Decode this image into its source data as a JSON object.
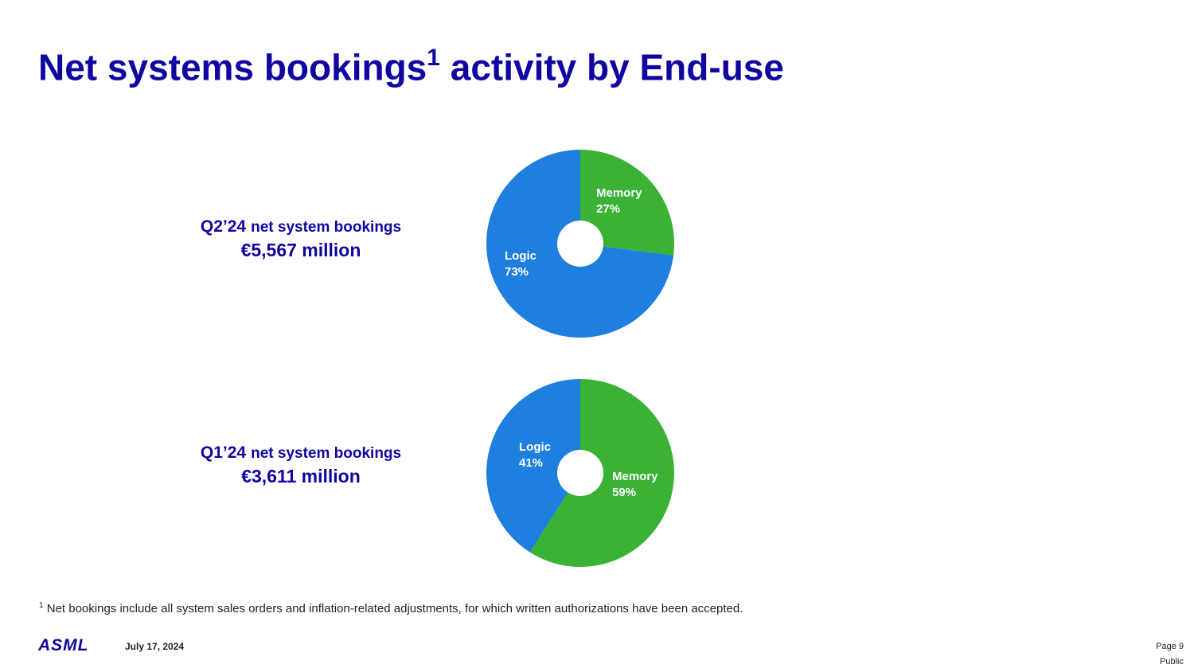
{
  "title": {
    "main": "Net systems bookings",
    "footnote_marker": "1",
    "rest": " activity by End-use"
  },
  "colors": {
    "brand": "#10069f",
    "logic": "#1e7fdf",
    "memory": "#39b235"
  },
  "chart_data": [
    {
      "type": "pie",
      "quarter": "Q2’24",
      "subtitle": "net system bookings",
      "total": "€5,567 million",
      "categories": [
        "Memory",
        "Logic"
      ],
      "values": [
        27,
        73
      ],
      "labels": [
        "27%",
        "73%"
      ],
      "colors": [
        "#39b235",
        "#1e7fdf"
      ]
    },
    {
      "type": "pie",
      "quarter": "Q1’24",
      "subtitle": "net system bookings",
      "total": "€3,611 million",
      "categories": [
        "Memory",
        "Logic"
      ],
      "values": [
        59,
        41
      ],
      "labels": [
        "59%",
        "41%"
      ],
      "colors": [
        "#39b235",
        "#1e7fdf"
      ]
    }
  ],
  "footnote": {
    "marker": "1",
    "text": " Net bookings include all system sales orders and inflation-related adjustments, for which written authorizations have been accepted."
  },
  "footer": {
    "logo": "ASML",
    "date": "July 17, 2024",
    "page": "Page 9",
    "classification": "Public"
  }
}
